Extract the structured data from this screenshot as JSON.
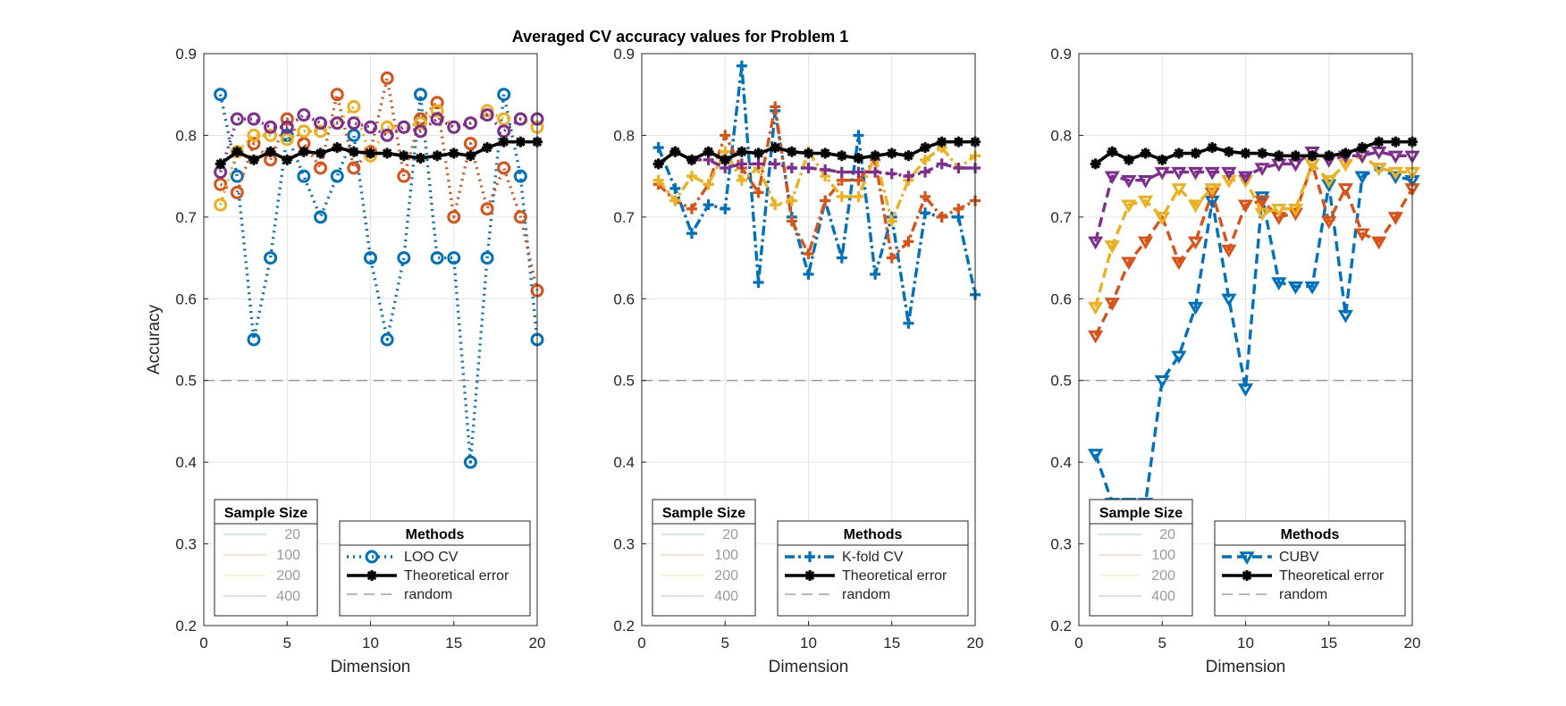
{
  "figure_title": "Averaged CV accuracy values for Problem 1",
  "chart_data": [
    {
      "type": "line",
      "title": "",
      "xlabel": "Dimension",
      "ylabel": "Accuracy",
      "xlim": [
        0,
        20
      ],
      "ylim": [
        0.2,
        0.9
      ],
      "xticks": [
        0,
        5,
        10,
        15,
        20
      ],
      "yticks": [
        0.2,
        0.3,
        0.4,
        0.5,
        0.6,
        0.7,
        0.8,
        0.9
      ],
      "grid": true,
      "x": [
        1,
        2,
        3,
        4,
        5,
        6,
        7,
        8,
        9,
        10,
        11,
        12,
        13,
        14,
        15,
        16,
        17,
        18,
        19,
        20
      ],
      "line_style": "dotted",
      "marker": "circle",
      "series": [
        {
          "name": "20",
          "color": "#0072BD",
          "values": [
            0.85,
            0.75,
            0.55,
            0.65,
            0.8,
            0.75,
            0.7,
            0.75,
            0.8,
            0.65,
            0.55,
            0.65,
            0.85,
            0.65,
            0.65,
            0.4,
            0.65,
            0.85,
            0.75,
            0.55
          ]
        },
        {
          "name": "100",
          "color": "#D95319",
          "values": [
            0.74,
            0.73,
            0.79,
            0.77,
            0.82,
            0.79,
            0.76,
            0.85,
            0.76,
            0.78,
            0.87,
            0.75,
            0.82,
            0.84,
            0.7,
            0.79,
            0.71,
            0.76,
            0.7,
            0.61
          ]
        },
        {
          "name": "200",
          "color": "#EDB120",
          "values": [
            0.715,
            0.78,
            0.8,
            0.8,
            0.795,
            0.805,
            0.805,
            0.815,
            0.835,
            0.775,
            0.81,
            0.81,
            0.815,
            0.83,
            0.81,
            0.815,
            0.83,
            0.82,
            0.82,
            0.81
          ]
        },
        {
          "name": "400",
          "color": "#7E2F8E",
          "values": [
            0.755,
            0.82,
            0.82,
            0.81,
            0.81,
            0.825,
            0.815,
            0.815,
            0.815,
            0.81,
            0.8,
            0.81,
            0.805,
            0.82,
            0.81,
            0.815,
            0.825,
            0.805,
            0.82,
            0.82
          ]
        },
        {
          "name": "Theoretical error",
          "color": "#000000",
          "values": [
            0.765,
            0.78,
            0.77,
            0.78,
            0.77,
            0.78,
            0.778,
            0.785,
            0.78,
            0.778,
            0.778,
            0.775,
            0.772,
            0.775,
            0.778,
            0.775,
            0.785,
            0.792,
            0.792,
            0.792
          ]
        },
        {
          "name": "random",
          "color": "#8c8c8c",
          "values": [
            0.5,
            0.5,
            0.5,
            0.5,
            0.5,
            0.5,
            0.5,
            0.5,
            0.5,
            0.5,
            0.5,
            0.5,
            0.5,
            0.5,
            0.5,
            0.5,
            0.5,
            0.5,
            0.5,
            0.5
          ]
        }
      ],
      "legend_sample": {
        "title": "Sample Size",
        "entries": [
          "20",
          "100",
          "200",
          "400"
        ],
        "placement": "bottom-left"
      },
      "legend_methods": {
        "title": "Methods",
        "entries": [
          "LOO CV",
          "Theoretical error",
          "random"
        ],
        "placement": "bottom-right"
      }
    },
    {
      "type": "line",
      "title": "",
      "xlabel": "Dimension",
      "ylabel": "",
      "xlim": [
        0,
        20
      ],
      "ylim": [
        0.2,
        0.9
      ],
      "xticks": [
        0,
        5,
        10,
        15,
        20
      ],
      "yticks": [
        0.2,
        0.3,
        0.4,
        0.5,
        0.6,
        0.7,
        0.8,
        0.9
      ],
      "grid": true,
      "x": [
        1,
        2,
        3,
        4,
        5,
        6,
        7,
        8,
        9,
        10,
        11,
        12,
        13,
        14,
        15,
        16,
        17,
        18,
        19,
        20
      ],
      "line_style": "dashdot",
      "marker": "plus",
      "series": [
        {
          "name": "20",
          "color": "#0072BD",
          "values": [
            0.785,
            0.735,
            0.68,
            0.715,
            0.71,
            0.885,
            0.62,
            0.83,
            0.7,
            0.63,
            0.72,
            0.65,
            0.8,
            0.63,
            0.7,
            0.57,
            0.705,
            0.7,
            0.7,
            0.605
          ]
        },
        {
          "name": "100",
          "color": "#D95319",
          "values": [
            0.74,
            0.72,
            0.71,
            0.74,
            0.8,
            0.76,
            0.73,
            0.835,
            0.695,
            0.655,
            0.72,
            0.745,
            0.745,
            0.77,
            0.65,
            0.67,
            0.725,
            0.7,
            0.71,
            0.72
          ]
        },
        {
          "name": "200",
          "color": "#EDB120",
          "values": [
            0.745,
            0.72,
            0.75,
            0.74,
            0.78,
            0.745,
            0.76,
            0.715,
            0.72,
            0.78,
            0.75,
            0.725,
            0.725,
            0.775,
            0.695,
            0.745,
            0.77,
            0.785,
            0.76,
            0.775
          ]
        },
        {
          "name": "400",
          "color": "#7E2F8E",
          "values": [
            0.765,
            0.78,
            0.77,
            0.77,
            0.76,
            0.765,
            0.765,
            0.765,
            0.76,
            0.76,
            0.758,
            0.755,
            0.755,
            0.755,
            0.753,
            0.75,
            0.755,
            0.765,
            0.76,
            0.76
          ]
        },
        {
          "name": "Theoretical error",
          "color": "#000000",
          "values": [
            0.765,
            0.78,
            0.77,
            0.78,
            0.77,
            0.78,
            0.778,
            0.785,
            0.78,
            0.778,
            0.778,
            0.775,
            0.772,
            0.775,
            0.778,
            0.775,
            0.785,
            0.792,
            0.792,
            0.792
          ]
        },
        {
          "name": "random",
          "color": "#8c8c8c",
          "values": [
            0.5,
            0.5,
            0.5,
            0.5,
            0.5,
            0.5,
            0.5,
            0.5,
            0.5,
            0.5,
            0.5,
            0.5,
            0.5,
            0.5,
            0.5,
            0.5,
            0.5,
            0.5,
            0.5,
            0.5
          ]
        }
      ],
      "legend_sample": {
        "title": "Sample Size",
        "entries": [
          "20",
          "100",
          "200",
          "400"
        ],
        "placement": "bottom-left"
      },
      "legend_methods": {
        "title": "Methods",
        "entries": [
          "K-fold CV",
          "Theoretical error",
          "random"
        ],
        "placement": "bottom-right"
      }
    },
    {
      "type": "line",
      "title": "",
      "xlabel": "Dimension",
      "ylabel": "",
      "xlim": [
        0,
        20
      ],
      "ylim": [
        0.2,
        0.9
      ],
      "xticks": [
        0,
        5,
        10,
        15,
        20
      ],
      "yticks": [
        0.2,
        0.3,
        0.4,
        0.5,
        0.6,
        0.7,
        0.8,
        0.9
      ],
      "grid": true,
      "x": [
        1,
        2,
        3,
        4,
        5,
        6,
        7,
        8,
        9,
        10,
        11,
        12,
        13,
        14,
        15,
        16,
        17,
        18,
        19,
        20
      ],
      "line_style": "dashed",
      "marker": "triangle-down",
      "series": [
        {
          "name": "20",
          "color": "#0072BD",
          "values": [
            0.41,
            0.35,
            0.35,
            0.35,
            0.5,
            0.53,
            0.59,
            0.72,
            0.6,
            0.49,
            0.725,
            0.62,
            0.615,
            0.615,
            0.74,
            0.58,
            0.75,
            0.76,
            0.75,
            0.745
          ]
        },
        {
          "name": "100",
          "color": "#D95319",
          "values": [
            0.555,
            0.595,
            0.645,
            0.67,
            0.7,
            0.645,
            0.67,
            0.73,
            0.66,
            0.715,
            0.72,
            0.7,
            0.705,
            0.765,
            0.695,
            0.735,
            0.68,
            0.67,
            0.7,
            0.735
          ]
        },
        {
          "name": "200",
          "color": "#EDB120",
          "values": [
            0.59,
            0.665,
            0.715,
            0.72,
            0.7,
            0.735,
            0.715,
            0.735,
            0.745,
            0.745,
            0.705,
            0.71,
            0.71,
            0.765,
            0.745,
            0.765,
            0.775,
            0.76,
            0.755,
            0.755
          ]
        },
        {
          "name": "400",
          "color": "#7E2F8E",
          "values": [
            0.67,
            0.75,
            0.745,
            0.745,
            0.755,
            0.755,
            0.755,
            0.755,
            0.755,
            0.75,
            0.76,
            0.765,
            0.765,
            0.78,
            0.77,
            0.775,
            0.775,
            0.78,
            0.775,
            0.775
          ]
        },
        {
          "name": "Theoretical error",
          "color": "#000000",
          "values": [
            0.765,
            0.78,
            0.77,
            0.778,
            0.77,
            0.778,
            0.778,
            0.785,
            0.78,
            0.778,
            0.778,
            0.775,
            0.775,
            0.775,
            0.775,
            0.778,
            0.785,
            0.792,
            0.792,
            0.792
          ]
        },
        {
          "name": "random",
          "color": "#8c8c8c",
          "values": [
            0.5,
            0.5,
            0.5,
            0.5,
            0.5,
            0.5,
            0.5,
            0.5,
            0.5,
            0.5,
            0.5,
            0.5,
            0.5,
            0.5,
            0.5,
            0.5,
            0.5,
            0.5,
            0.5,
            0.5
          ]
        }
      ],
      "legend_sample": {
        "title": "Sample Size",
        "entries": [
          "20",
          "100",
          "200",
          "400"
        ],
        "placement": "bottom-left"
      },
      "legend_methods": {
        "title": "Methods",
        "entries": [
          "CUBV",
          "Theoretical error",
          "random"
        ],
        "placement": "bottom-right"
      }
    }
  ]
}
